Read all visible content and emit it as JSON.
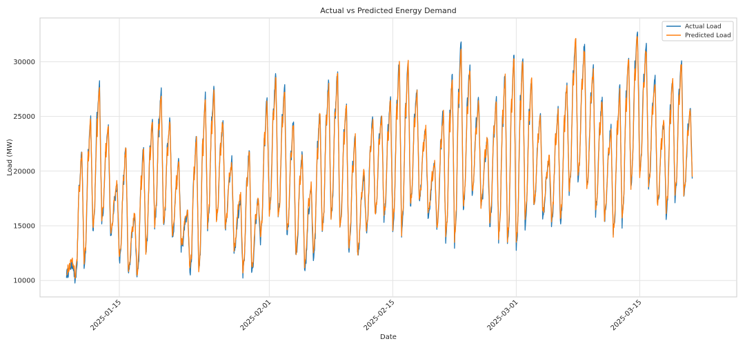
{
  "chart_data": {
    "type": "line",
    "title": "Actual vs Predicted Energy Demand",
    "xlabel": "Date",
    "ylabel": "Load (MW)",
    "xlim": [
      "2025-01-06",
      "2025-03-26"
    ],
    "ylim": [
      8500,
      34000
    ],
    "yticks": [
      10000,
      15000,
      20000,
      25000,
      30000
    ],
    "xticks": [
      "2025-01-15",
      "2025-02-01",
      "2025-02-15",
      "2025-03-01",
      "2025-03-15"
    ],
    "grid": true,
    "legend_position": "top-right",
    "date_range": [
      "2025-01-09",
      "2025-03-23"
    ],
    "series": [
      {
        "name": "Actual Load",
        "color": "#1f77b4",
        "daily_peaks": [
          11500,
          21800,
          25000,
          28000,
          24000,
          18500,
          22200,
          15800,
          22100,
          24700,
          27200,
          24800,
          20800,
          16200,
          23200,
          26800,
          27800,
          24200,
          21000,
          17500,
          22000,
          17300,
          26500,
          28900,
          27500,
          24400,
          21500,
          18600,
          25500,
          28200,
          29000,
          26200,
          23200,
          19500,
          25000,
          25200,
          26500,
          30000,
          30000,
          27500,
          24000,
          20500,
          25500,
          28500,
          31500,
          29500,
          26500,
          22800,
          26500,
          28800,
          30500,
          30500,
          28500,
          25000,
          21000,
          25500,
          28000,
          32300,
          31500,
          29500,
          26500,
          24000,
          27500,
          30500,
          33000,
          31500,
          28500,
          24500,
          28500,
          30200,
          25800
        ],
        "daily_troughs": [
          10600,
          9700,
          11000,
          14500,
          15500,
          14300,
          11500,
          10700,
          10000,
          12500,
          15000,
          15200,
          14000,
          13000,
          10400,
          10700,
          14800,
          15700,
          14800,
          12800,
          10400,
          10800,
          13700,
          16000,
          15600,
          14000,
          12000,
          11000,
          11800,
          14300,
          15500,
          14500,
          12500,
          12200,
          14400,
          16000,
          15600,
          14600,
          14200,
          16800,
          17500,
          16000,
          14500,
          13600,
          13300,
          16500,
          18000,
          16800,
          15000,
          13800,
          13000,
          12700,
          15000,
          16800,
          16000,
          15300,
          15200,
          18000,
          19200,
          18300,
          16200,
          15500,
          14000,
          15200,
          18500,
          19800,
          18700,
          16800,
          16000,
          17500,
          17800
        ]
      },
      {
        "name": "Predicted Load",
        "color": "#ff7f0e",
        "daily_peaks": [
          11800,
          21500,
          24500,
          27200,
          24300,
          18800,
          22000,
          16000,
          21800,
          24500,
          26900,
          24600,
          20600,
          16400,
          22800,
          26500,
          27400,
          24500,
          20800,
          17800,
          21700,
          17500,
          26200,
          28500,
          27100,
          24200,
          21300,
          18800,
          25200,
          27800,
          28600,
          25800,
          23000,
          19800,
          24700,
          25000,
          26200,
          29600,
          29700,
          27200,
          23800,
          20700,
          25200,
          28200,
          31000,
          29100,
          26200,
          23000,
          26300,
          28500,
          30100,
          30100,
          28200,
          24800,
          21200,
          25300,
          27700,
          31800,
          31100,
          29200,
          26200,
          23800,
          27200,
          30200,
          32400,
          31000,
          28200,
          24600,
          28300,
          29800,
          25400
        ],
        "daily_troughs": [
          10900,
          10300,
          11500,
          14800,
          15600,
          14500,
          11800,
          11000,
          10600,
          12800,
          15200,
          15400,
          14300,
          13300,
          10800,
          11000,
          15000,
          15800,
          15000,
          13000,
          10800,
          11200,
          14000,
          16100,
          15700,
          14300,
          12400,
          11400,
          12200,
          14600,
          15700,
          14700,
          12900,
          12500,
          14700,
          16200,
          15800,
          14800,
          14500,
          17000,
          17600,
          16200,
          14800,
          13900,
          13700,
          16700,
          18200,
          17000,
          15300,
          14100,
          13400,
          13100,
          15300,
          17000,
          16200,
          15500,
          15400,
          18100,
          19300,
          18400,
          16400,
          15700,
          14400,
          15500,
          18600,
          19800,
          18800,
          17000,
          16300,
          17700,
          18000
        ]
      }
    ]
  }
}
